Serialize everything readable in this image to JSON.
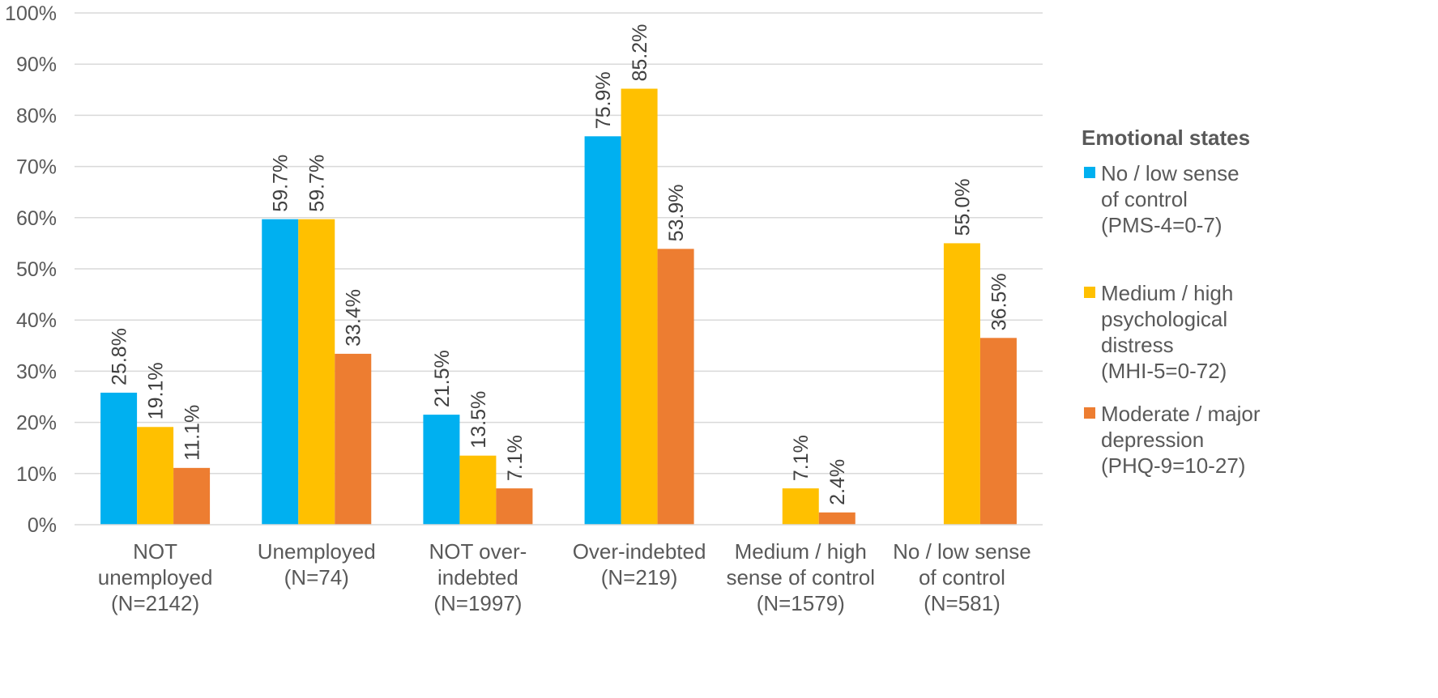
{
  "chart_data": {
    "type": "bar",
    "y_ticks": [
      "0%",
      "10%",
      "20%",
      "30%",
      "40%",
      "50%",
      "60%",
      "70%",
      "80%",
      "90%",
      "100%"
    ],
    "ylim": [
      0,
      100
    ],
    "grid": true,
    "legend_position": "right",
    "categories": [
      [
        "NOT",
        "unemployed",
        "(N=2142)"
      ],
      [
        "Unemployed",
        "(N=74)"
      ],
      [
        "NOT over-",
        "indebted",
        "(N=1997)"
      ],
      [
        "Over-indebted",
        "(N=219)"
      ],
      [
        "Medium / high",
        "sense of control",
        "(N=1579)"
      ],
      [
        "No / low sense",
        "of control",
        "(N=581)"
      ]
    ],
    "series": [
      {
        "name": "No / low sense of control (PMS-4=0-7)",
        "legend_lines": [
          "No / low sense",
          "of control",
          "(PMS-4=0-7)"
        ],
        "color": "#00B0F0",
        "values": [
          25.8,
          59.7,
          21.5,
          75.9,
          null,
          null
        ],
        "labels": [
          "25.8%",
          "59.7%",
          "21.5%",
          "75.9%",
          null,
          null
        ]
      },
      {
        "name": "Medium / high psychological distress (MHI-5=0-72)",
        "legend_lines": [
          "Medium / high",
          "psychological",
          "distress",
          "(MHI-5=0-72)"
        ],
        "color": "#FFC000",
        "values": [
          19.1,
          59.7,
          13.5,
          85.2,
          7.1,
          55.0
        ],
        "labels": [
          "19.1%",
          "59.7%",
          "13.5%",
          "85.2%",
          "7.1%",
          "55.0%"
        ]
      },
      {
        "name": "Moderate / major depression (PHQ-9=10-27)",
        "legend_lines": [
          "Moderate / major",
          "depression",
          "(PHQ-9=10-27)"
        ],
        "color": "#ED7D31",
        "values": [
          11.1,
          33.4,
          7.1,
          53.9,
          2.4,
          36.5
        ],
        "labels": [
          "11.1%",
          "33.4%",
          "7.1%",
          "53.9%",
          "2.4%",
          "36.5%"
        ]
      }
    ],
    "legend_title": "Emotional states"
  }
}
